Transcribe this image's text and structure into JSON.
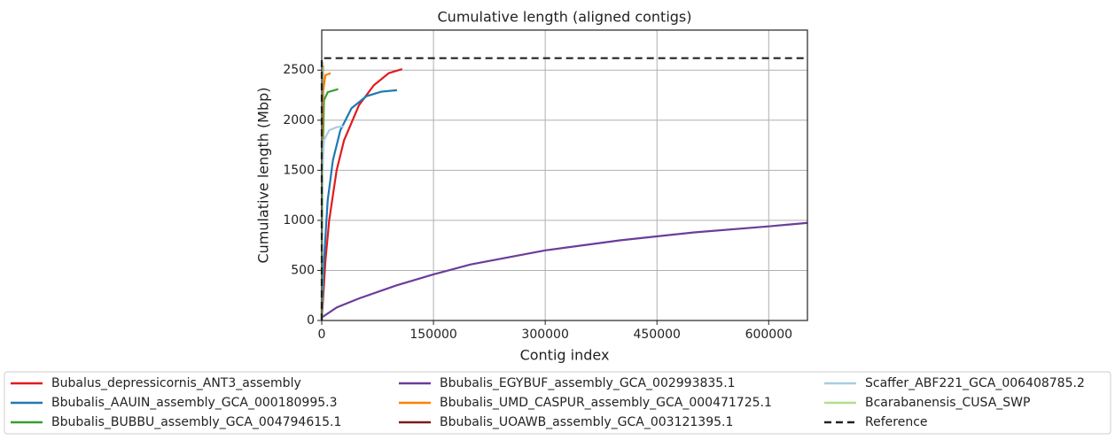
{
  "chart_data": {
    "type": "line",
    "title": "Cumulative length (aligned contigs)",
    "xlabel": "Contig index",
    "ylabel": "Cumulative length (Mbp)",
    "xlim": [
      0,
      652000
    ],
    "ylim": [
      0,
      2900
    ],
    "xticks": [
      0,
      150000,
      300000,
      450000,
      600000
    ],
    "yticks": [
      0,
      500,
      1000,
      1500,
      2000,
      2500
    ],
    "grid": true,
    "legend": "bottom",
    "series": [
      {
        "name": "Bubalus_depressicornis_ANT3_assembly",
        "color": "#e31a1c",
        "x": [
          0,
          5000,
          10000,
          20000,
          30000,
          50000,
          70000,
          90000,
          108000
        ],
        "values": [
          0,
          600,
          1000,
          1500,
          1800,
          2150,
          2350,
          2470,
          2510
        ]
      },
      {
        "name": "Bbubalis_AAUIN_assembly_GCA_000180995.3",
        "color": "#1f78b4",
        "x": [
          0,
          3000,
          8000,
          15000,
          25000,
          40000,
          60000,
          80000,
          101000
        ],
        "values": [
          0,
          600,
          1200,
          1600,
          1900,
          2120,
          2240,
          2285,
          2300
        ]
      },
      {
        "name": "Bbubalis_BUBBU_assembly_GCA_004794615.1",
        "color": "#33a02c",
        "x": [
          0,
          1000,
          3000,
          8000,
          22000
        ],
        "values": [
          0,
          1500,
          2200,
          2280,
          2310
        ]
      },
      {
        "name": "Bbubalis_EGYBUF_assembly_GCA_002993835.1",
        "color": "#6a3d9a",
        "x": [
          0,
          20000,
          50000,
          100000,
          150000,
          200000,
          300000,
          400000,
          500000,
          600000,
          652000
        ],
        "values": [
          30,
          130,
          220,
          350,
          460,
          560,
          700,
          800,
          880,
          940,
          975
        ]
      },
      {
        "name": "Bbubalis_UMD_CASPUR_assembly_GCA_000471725.1",
        "color": "#ff7f00",
        "x": [
          0,
          500,
          2000,
          5000,
          12000
        ],
        "values": [
          0,
          1500,
          2300,
          2450,
          2470
        ]
      },
      {
        "name": "Bbubalis_UOAWB_assembly_GCA_003121395.1",
        "color": "#7b1c1c",
        "x": [
          0,
          500,
          1500
        ],
        "values": [
          0,
          1800,
          2550
        ]
      },
      {
        "name": "Scaffer_ABF221_GCA_006408785.2",
        "color": "#a6cee3",
        "x": [
          0,
          1000,
          3000,
          10000,
          20000,
          30000
        ],
        "values": [
          0,
          1500,
          1800,
          1900,
          1930,
          1940
        ]
      },
      {
        "name": "Bcarabanensis_CUSA_SWP",
        "color": "#b2df8a",
        "x": [
          0,
          300,
          1000,
          2000
        ],
        "values": [
          0,
          2000,
          2560,
          2580
        ]
      },
      {
        "name": "Reference",
        "color": "#222222",
        "linestyle": "dashed",
        "x": [
          0,
          0,
          652000
        ],
        "values": [
          0,
          2620,
          2620
        ]
      }
    ]
  }
}
